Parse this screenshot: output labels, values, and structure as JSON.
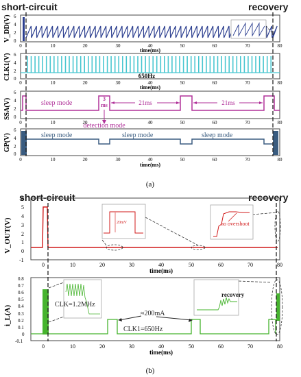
{
  "figure": {
    "panel_a": {
      "event_left": "short-circuit",
      "event_right": "recovery",
      "caption": "(a)",
      "xlabel": "time(ms)",
      "x_ticks": [
        "0",
        "10",
        "20",
        "30",
        "40",
        "50",
        "60",
        "70",
        "80"
      ],
      "subplots": [
        {
          "ylabel": "V_DD(V)",
          "y_ticks": [
            "6",
            "4",
            "2",
            "0"
          ],
          "color": "#2b3e8f",
          "annotations": []
        },
        {
          "ylabel": "CLK1(V)",
          "y_ticks": [
            "6",
            "4",
            "2",
            "0"
          ],
          "color": "#48c6d0",
          "annotations": [
            "650Hz"
          ]
        },
        {
          "ylabel": "SSA(V)",
          "y_ticks": [
            "6",
            "4",
            "2",
            "0"
          ],
          "color": "#b03099",
          "annotations": [
            "sleep mode",
            "3",
            "ms",
            "21ms",
            "21ms",
            "detection mode"
          ]
        },
        {
          "ylabel": "GP(V)",
          "y_ticks": [
            "6",
            "4",
            "2",
            "0"
          ],
          "color": "#3a5c80",
          "annotations": [
            "sleep mode",
            "sleep mode",
            "sleep mode"
          ]
        }
      ]
    },
    "panel_b": {
      "event_left": "short-circuit",
      "event_right": "recovery",
      "caption": "(b)",
      "xlabel": "time(ms)",
      "x_ticks": [
        "0",
        "10",
        "20",
        "30",
        "40",
        "50",
        "60",
        "70",
        "80"
      ],
      "subplots": [
        {
          "ylabel": "V_OUT(V)",
          "y_ticks": [
            "6",
            "5",
            "4",
            "3",
            "2",
            "1",
            "0",
            "-1"
          ],
          "color": "#d11a1a",
          "annotations": [
            "20mV",
            "no overshoot"
          ]
        },
        {
          "ylabel": "i_L(A)",
          "y_ticks": [
            "0.8",
            "0.7",
            "0.6",
            "0.5",
            "0.4",
            "0.3",
            "0.2",
            "0.1",
            "0",
            "-0.1"
          ],
          "color": "#46b42e",
          "annotations": [
            "CLK=1.2MHz",
            "≈200mA",
            "CLK1=650Hz",
            "recovery"
          ]
        }
      ]
    }
  },
  "chart_data": [
    {
      "type": "line",
      "title": "",
      "xlabel": "time(ms)",
      "ylabel": "V_DD(V)",
      "xlim": [
        0,
        80
      ],
      "ylim": [
        0,
        6
      ],
      "series": [
        {
          "x": [
            0,
            2.5,
            2.5,
            75,
            75,
            80
          ],
          "y": [
            2.5,
            2.5,
            0.2,
            2.5,
            0.2,
            2.5
          ]
        }
      ]
    },
    {
      "type": "line",
      "title": "",
      "xlabel": "time(ms)",
      "ylabel": "CLK1(V)",
      "xlim": [
        0,
        80
      ],
      "ylim": [
        0,
        6
      ],
      "series": [
        {
          "x": [
            0,
            2.5,
            75,
            80
          ],
          "y": [
            0,
            5,
            5,
            0
          ]
        }
      ]
    },
    {
      "type": "line",
      "title": "",
      "xlabel": "time(ms)",
      "ylabel": "SSA(V)",
      "xlim": [
        0,
        80
      ],
      "ylim": [
        0,
        6
      ],
      "series": [
        {
          "x": [
            0,
            0.5,
            0.5,
            2.5,
            2.5,
            24,
            24,
            27,
            27,
            48,
            48,
            51,
            51,
            72,
            72,
            75,
            75,
            80
          ],
          "y": [
            0,
            0,
            5,
            5,
            0,
            0,
            5,
            5,
            0,
            0,
            5,
            5,
            0,
            0,
            5,
            5,
            0,
            0
          ]
        }
      ]
    },
    {
      "type": "line",
      "title": "",
      "xlabel": "time(ms)",
      "ylabel": "GP(V)",
      "xlim": [
        0,
        80
      ],
      "ylim": [
        0,
        6
      ],
      "series": [
        {
          "x": [
            0,
            2.5,
            2.5,
            24,
            24,
            27,
            27,
            48,
            48,
            51,
            51,
            72,
            72,
            75,
            75,
            80
          ],
          "y": [
            5,
            5,
            3,
            3,
            2,
            2,
            3,
            3,
            2,
            2,
            3,
            3,
            2,
            2,
            5,
            5
          ]
        }
      ]
    },
    {
      "type": "line",
      "title": "",
      "xlabel": "time(ms)",
      "ylabel": "V_OUT(V)",
      "xlim": [
        -4,
        80
      ],
      "ylim": [
        -1,
        6
      ],
      "series": [
        {
          "x": [
            -4,
            0.2,
            0.5,
            1.2,
            1.5,
            2,
            75,
            80
          ],
          "y": [
            0,
            0,
            5,
            5,
            0,
            0,
            0,
            0
          ]
        }
      ]
    },
    {
      "type": "line",
      "title": "",
      "xlabel": "time(ms)",
      "ylabel": "i_L(A)",
      "xlim": [
        -4,
        80
      ],
      "ylim": [
        -0.1,
        0.8
      ],
      "series": [
        {
          "x": [
            -4,
            0,
            0.5,
            1.5,
            2.5,
            2.5,
            24,
            24,
            27,
            27,
            48,
            48,
            51,
            51,
            72,
            72,
            75,
            75,
            76.5,
            80
          ],
          "y": [
            0,
            0,
            0.5,
            0.5,
            0.5,
            0,
            0,
            0.2,
            0.2,
            0,
            0,
            0.2,
            0.2,
            0,
            0,
            0.2,
            0.2,
            0.55,
            0.55,
            0
          ]
        }
      ]
    }
  ]
}
